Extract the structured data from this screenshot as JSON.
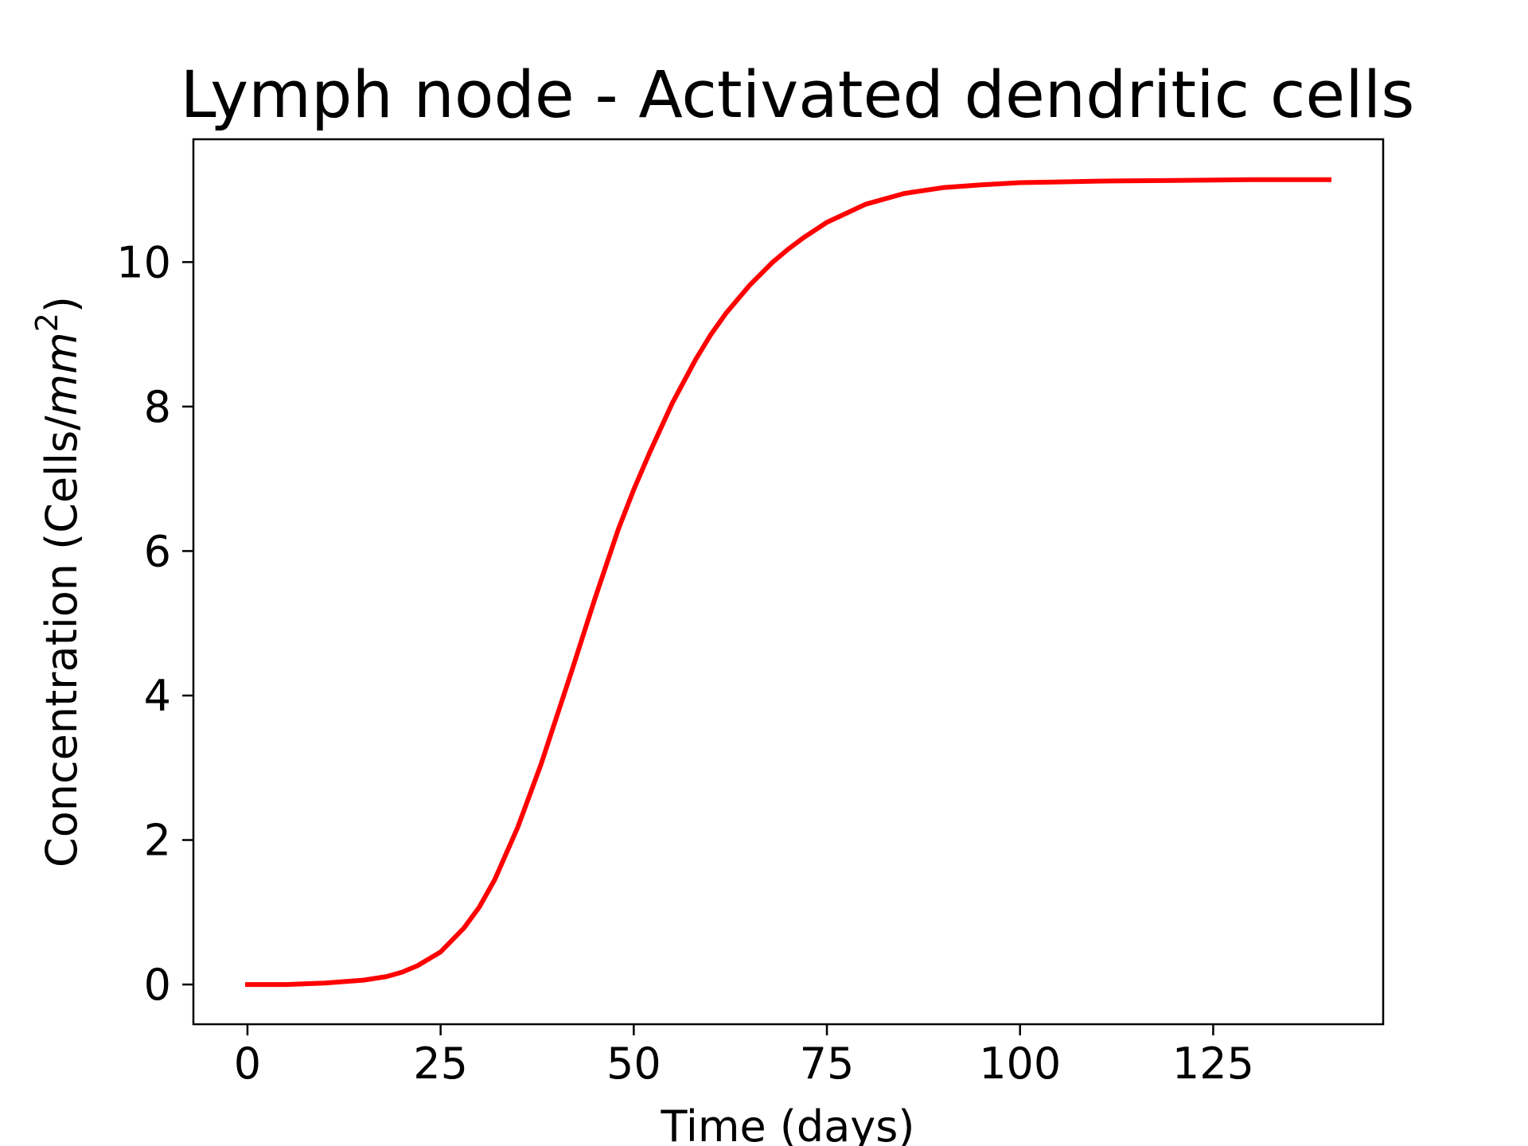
{
  "chart_data": {
    "type": "line",
    "title": "Lymph node - Activated dendritic cells",
    "xlabel": "Time (days)",
    "ylabel": {
      "prefix": "Concentration (Cells/",
      "unit": "mm",
      "exponent": "2",
      "suffix": ")"
    },
    "xlim": [
      -7,
      147
    ],
    "ylim": [
      -0.55,
      11.7
    ],
    "xticks": [
      0,
      25,
      50,
      75,
      100,
      125
    ],
    "yticks": [
      0,
      2,
      4,
      6,
      8,
      10
    ],
    "grid": false,
    "legend": "none",
    "series": [
      {
        "color": "#ff0000",
        "x": [
          0,
          5,
          10,
          15,
          18,
          20,
          22,
          25,
          28,
          30,
          32,
          35,
          38,
          40,
          42,
          45,
          48,
          50,
          52,
          55,
          58,
          60,
          62,
          65,
          68,
          70,
          72,
          75,
          80,
          85,
          90,
          95,
          100,
          105,
          110,
          120,
          130,
          140
        ],
        "y": [
          0.0,
          0.0,
          0.02,
          0.06,
          0.11,
          0.17,
          0.26,
          0.45,
          0.78,
          1.07,
          1.45,
          2.18,
          3.05,
          3.7,
          4.35,
          5.35,
          6.3,
          6.85,
          7.35,
          8.05,
          8.65,
          9.0,
          9.3,
          9.68,
          10.0,
          10.18,
          10.34,
          10.55,
          10.8,
          10.95,
          11.03,
          11.07,
          11.1,
          11.11,
          11.12,
          11.13,
          11.14,
          11.14
        ]
      }
    ]
  }
}
